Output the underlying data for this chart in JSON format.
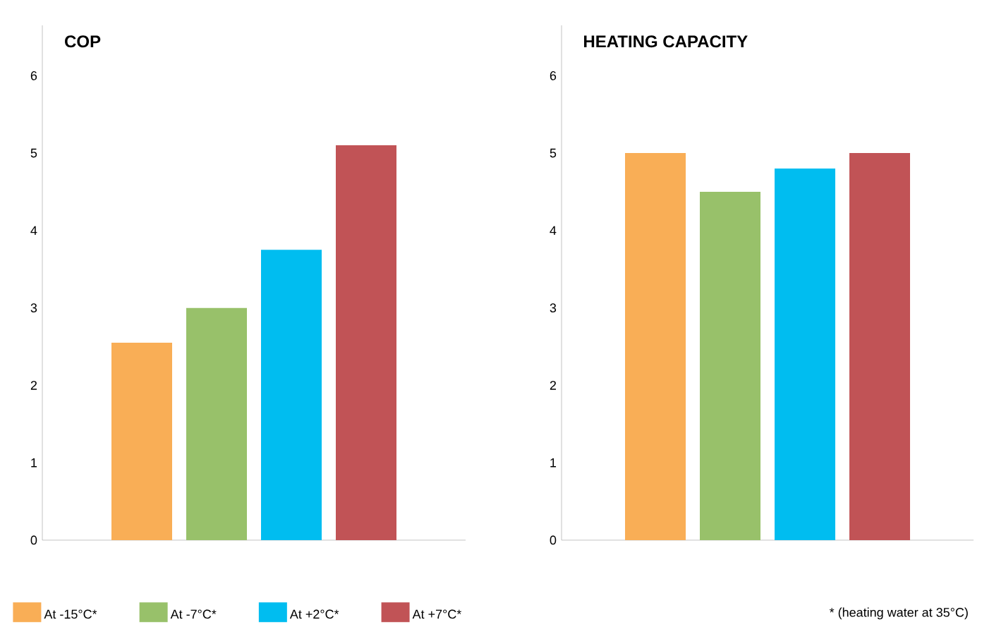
{
  "chart_data": [
    {
      "type": "bar",
      "title": "COP",
      "categories": [
        null
      ],
      "ylim": [
        0,
        6.65
      ],
      "yticks": [
        0,
        1,
        2,
        3,
        4,
        5,
        6
      ],
      "legend": "bottom",
      "series": [
        {
          "name": "At -15°C*",
          "color": "#f9ae56",
          "values": [
            2.55
          ]
        },
        {
          "name": "At -7°C*",
          "color": "#98c16a",
          "values": [
            3.0
          ]
        },
        {
          "name": "At +2°C*",
          "color": "#00bdf0",
          "values": [
            3.75
          ]
        },
        {
          "name": "At +7°C*",
          "color": "#c15356",
          "values": [
            5.1
          ]
        }
      ]
    },
    {
      "type": "bar",
      "title": "HEATING CAPACITY",
      "categories": [
        null
      ],
      "ylim": [
        0,
        6.65
      ],
      "yticks": [
        0,
        1,
        2,
        3,
        4,
        5,
        6
      ],
      "annotations": [
        "* (heating water at 35°C)"
      ],
      "series": [
        {
          "color": "#f9ae56",
          "values": [
            5.0
          ]
        },
        {
          "color": "#98c16a",
          "values": [
            4.5
          ]
        },
        {
          "color": "#00bdf0",
          "values": [
            4.8
          ]
        },
        {
          "color": "#c15356",
          "values": [
            5.0
          ]
        }
      ]
    }
  ]
}
